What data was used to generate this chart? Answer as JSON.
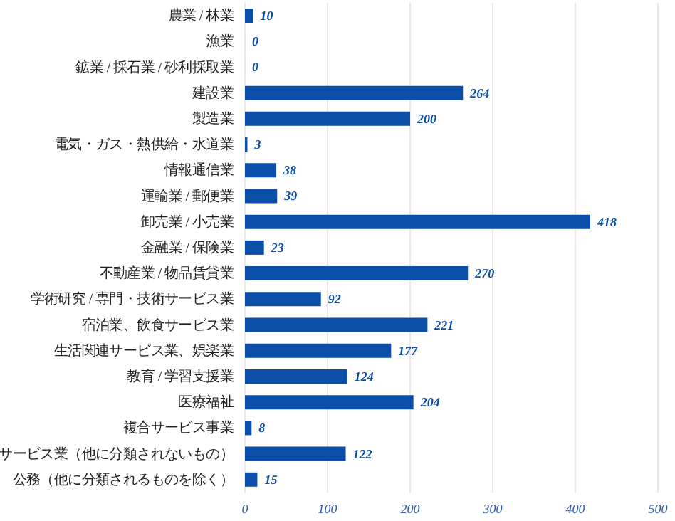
{
  "chart_data": {
    "type": "bar",
    "orientation": "horizontal",
    "categories": [
      "農業 / 林業",
      "漁業",
      "鉱業 / 採石業 / 砂利採取業",
      "建設業",
      "製造業",
      "電気・ガス・熱供給・水道業",
      "情報通信業",
      "運輸業 / 郵便業",
      "卸売業 / 小売業",
      "金融業 / 保険業",
      "不動産業 / 物品賃貸業",
      "学術研究 / 専門・技術サービス業",
      "宿泊業、飲食サービス業",
      "生活関連サービス業、娯楽業",
      "教育 / 学習支援業",
      "医療福祉",
      "複合サービス事業",
      "サービス業（他に分類されないもの）",
      "公務（他に分類されるものを除く）"
    ],
    "values": [
      10,
      0,
      0,
      264,
      200,
      3,
      38,
      39,
      418,
      23,
      270,
      92,
      221,
      177,
      124,
      204,
      8,
      122,
      15
    ],
    "color": "#0b4ea8",
    "data_labels": true,
    "grid": "x",
    "xlim": [
      0,
      500
    ],
    "xticks": [
      0,
      100,
      200,
      300,
      400,
      500
    ]
  }
}
